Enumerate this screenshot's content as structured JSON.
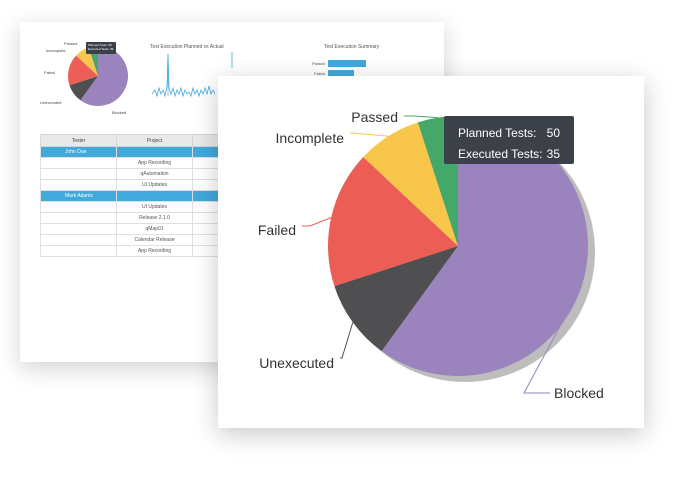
{
  "chart_data": {
    "type": "pie",
    "slices": [
      {
        "label": "Blocked",
        "value": 60,
        "color": "#9b84bd"
      },
      {
        "label": "Unexecuted",
        "value": 10,
        "color": "#4f4f52"
      },
      {
        "label": "Failed",
        "value": 17,
        "color": "#ec5e55"
      },
      {
        "label": "Incomplete",
        "value": 8,
        "color": "#f8c64a"
      },
      {
        "label": "Passed",
        "value": 5,
        "color": "#44a86a"
      }
    ],
    "tooltip": {
      "planned_label": "Planned Tests:",
      "planned_value": "50",
      "executed_label": "Executed Tests:",
      "executed_value": "35"
    }
  },
  "back_report": {
    "pie_labels": {
      "passed": "Passed",
      "incomplete": "Incomplete",
      "failed": "Failed",
      "unexecuted": "Unexecuted",
      "blocked": "Blocked"
    },
    "mini_tooltip": {
      "planned": "Planned Tests:",
      "planned_value": "50",
      "executed": "Executed Tests:",
      "executed_value": "35"
    },
    "line_chart_title": "Test Execution Planned vs Actual",
    "summary_chart_title": "Test Execution Summary",
    "summary_bars": [
      {
        "label": "Passed",
        "value": 38
      },
      {
        "label": "Failed",
        "value": 26
      }
    ],
    "table": {
      "headers": [
        "Tester",
        "Project",
        ""
      ],
      "groups": [
        {
          "tester": "John Doe",
          "projects": [
            "App Recording",
            "qAutomation",
            "UI Updates"
          ]
        },
        {
          "tester": "Mark Adams",
          "projects": [
            "UI Updates",
            "Release 2.1.0",
            "qMap01",
            "Calendar Release",
            "App Recording"
          ]
        }
      ]
    }
  },
  "colors": {
    "accent_blue": "#41a9dc",
    "tooltip_bg": "#3b4049",
    "leader_line": "#999999"
  }
}
